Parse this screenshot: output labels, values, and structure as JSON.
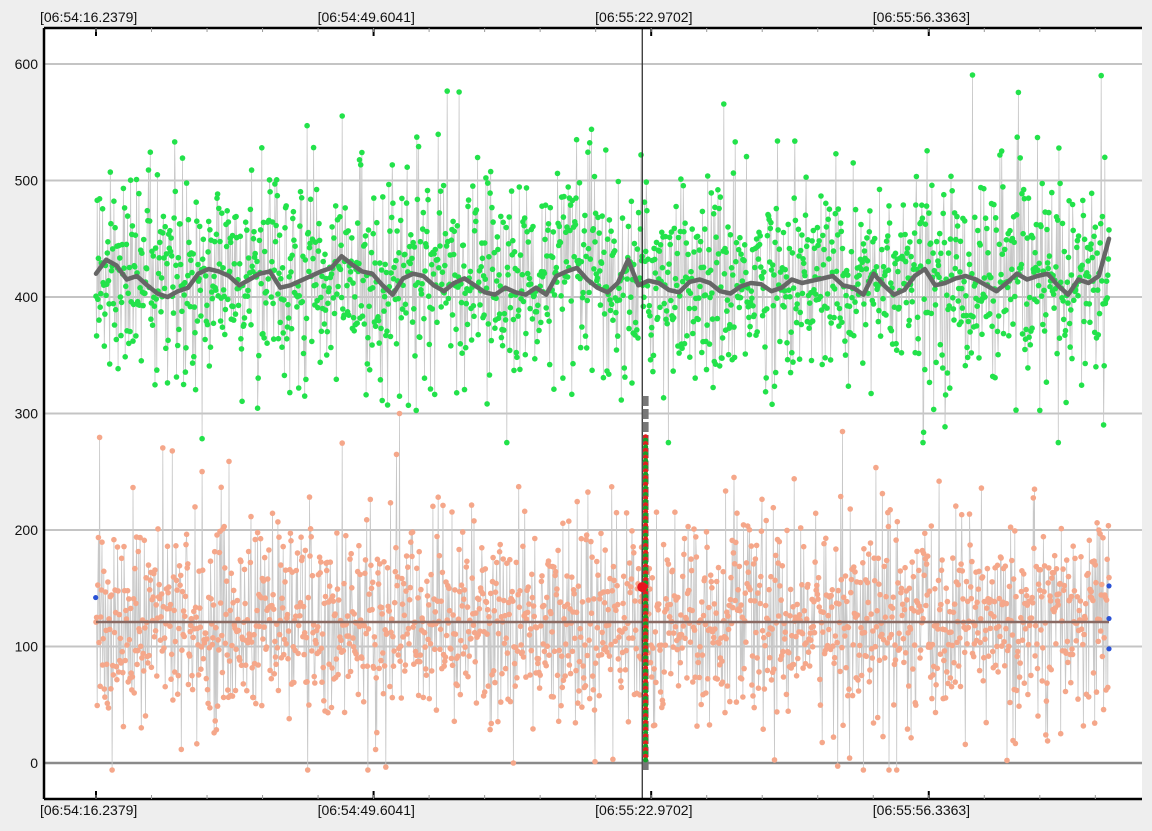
{
  "chart_data": {
    "type": "scatter",
    "title": "",
    "xlabel": "",
    "ylabel": "",
    "x_ticks": [
      "[06:54:16.2379]",
      "[06:54:49.6041]",
      "[06:55:22.9702]",
      "[06:55:56.3363]"
    ],
    "y_ticks": [
      0,
      100,
      200,
      300,
      400,
      500,
      600
    ],
    "ylim": [
      -30,
      630
    ],
    "xlim": [
      "06:54:16.2379",
      "06:56:18"
    ],
    "grid": true,
    "cursor_time": "06:55:21.9",
    "series": [
      {
        "role": "upper point cloud",
        "color": "#22e24a",
        "x_range": [
          "06:54:16.2379",
          "06:56:18"
        ],
        "approx_points": 1700,
        "mean": 415,
        "typical_range": [
          330,
          500
        ],
        "extremes": [
          275,
          607
        ]
      },
      {
        "role": "upper moving average",
        "color": "#666666",
        "values": [
          420,
          432,
          427,
          415,
          418,
          410,
          403,
          400,
          405,
          408,
          420,
          424,
          422,
          418,
          410,
          415,
          420,
          422,
          408,
          410,
          414,
          418,
          422,
          425,
          435,
          428,
          422,
          420,
          410,
          402,
          416,
          420,
          418,
          410,
          405,
          412,
          416,
          410,
          404,
          402,
          408,
          404,
          402,
          408,
          402,
          418,
          422,
          425,
          415,
          408,
          404,
          412,
          432,
          410,
          414,
          412,
          406,
          404,
          413,
          415,
          412,
          405,
          403,
          409,
          412,
          411,
          405,
          408,
          415,
          412,
          414,
          416,
          418,
          410,
          408,
          402,
          420,
          410,
          402,
          406,
          418,
          424,
          410,
          412,
          416,
          418,
          415,
          410,
          405,
          412,
          420,
          415,
          418,
          420,
          410,
          402,
          415,
          412,
          418,
          450
        ]
      },
      {
        "role": "lower point cloud",
        "color": "#f5a78a",
        "x_range": [
          "06:54:16.2379",
          "06:56:18"
        ],
        "approx_points": 1700,
        "mean": 120,
        "typical_range": [
          40,
          200
        ],
        "extremes": [
          -6,
          300
        ]
      },
      {
        "role": "lower mean line",
        "color": "#8a6a63",
        "value": 121
      },
      {
        "role": "highlighted column",
        "colors": [
          "#e01e1e",
          "#14a028"
        ],
        "x": "06:55:22.3",
        "y_range": [
          0,
          280
        ],
        "whisker_range": [
          -8,
          315
        ]
      },
      {
        "role": "highlighted point",
        "color": "#e8141e",
        "x": "06:55:21.9",
        "y": 151
      },
      {
        "role": "edge markers",
        "color": "#2a52d6",
        "points": [
          {
            "x": "06:54:16.2",
            "y": 142
          },
          {
            "x": "06:56:18",
            "y": 152
          },
          {
            "x": "06:56:18",
            "y": 124
          },
          {
            "x": "06:56:18",
            "y": 98
          }
        ]
      }
    ]
  }
}
